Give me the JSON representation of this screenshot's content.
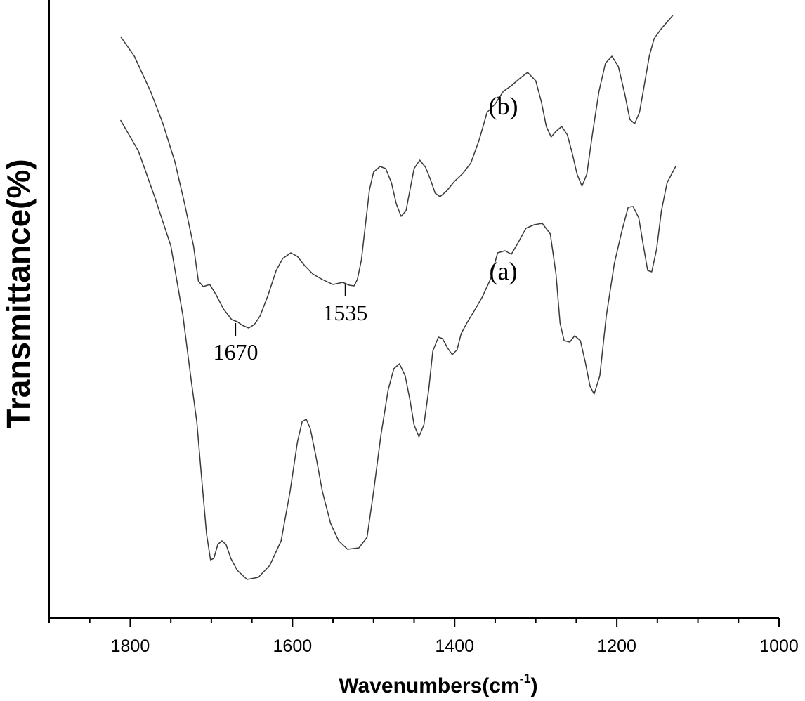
{
  "chart_data": {
    "type": "line",
    "xlabel": "Wavenumbers(cm",
    "xlabel_sup": "-1",
    "xlabel_close": ")",
    "ylabel": "Transmittance(%)",
    "xlim": [
      1900,
      1000
    ],
    "x_reversed": true,
    "y_ticks_shown": false,
    "grid": false,
    "x_ticks": [
      1800,
      1600,
      1400,
      1200,
      1000
    ],
    "x_tick_labels": [
      "1800",
      "1600",
      "1400",
      "1200",
      "1000"
    ],
    "series": [
      {
        "label": "(a)",
        "points": [
          [
            1812,
            171
          ],
          [
            1790,
            215
          ],
          [
            1770,
            280
          ],
          [
            1750,
            350
          ],
          [
            1735,
            450
          ],
          [
            1725,
            540
          ],
          [
            1718,
            600
          ],
          [
            1712,
            680
          ],
          [
            1706,
            760
          ],
          [
            1701,
            797
          ],
          [
            1697,
            795
          ],
          [
            1692,
            775
          ],
          [
            1687,
            770
          ],
          [
            1682,
            775
          ],
          [
            1676,
            795
          ],
          [
            1668,
            812
          ],
          [
            1656,
            825
          ],
          [
            1642,
            822
          ],
          [
            1628,
            805
          ],
          [
            1614,
            770
          ],
          [
            1603,
            700
          ],
          [
            1594,
            630
          ],
          [
            1588,
            600
          ],
          [
            1583,
            597
          ],
          [
            1578,
            610
          ],
          [
            1571,
            650
          ],
          [
            1563,
            700
          ],
          [
            1553,
            745
          ],
          [
            1543,
            770
          ],
          [
            1532,
            782
          ],
          [
            1518,
            780
          ],
          [
            1508,
            765
          ],
          [
            1500,
            700
          ],
          [
            1491,
            620
          ],
          [
            1482,
            555
          ],
          [
            1475,
            525
          ],
          [
            1468,
            518
          ],
          [
            1461,
            535
          ],
          [
            1455,
            570
          ],
          [
            1450,
            605
          ],
          [
            1444,
            622
          ],
          [
            1438,
            605
          ],
          [
            1432,
            555
          ],
          [
            1427,
            500
          ],
          [
            1420,
            480
          ],
          [
            1415,
            482
          ],
          [
            1409,
            495
          ],
          [
            1403,
            505
          ],
          [
            1397,
            498
          ],
          [
            1392,
            475
          ],
          [
            1385,
            460
          ],
          [
            1376,
            443
          ],
          [
            1366,
            423
          ],
          [
            1356,
            398
          ],
          [
            1347,
            360
          ],
          [
            1338,
            357
          ],
          [
            1330,
            362
          ],
          [
            1322,
            346
          ],
          [
            1312,
            325
          ],
          [
            1302,
            320
          ],
          [
            1292,
            318
          ],
          [
            1282,
            333
          ],
          [
            1275,
            390
          ],
          [
            1270,
            460
          ],
          [
            1265,
            485
          ],
          [
            1258,
            487
          ],
          [
            1252,
            478
          ],
          [
            1245,
            485
          ],
          [
            1239,
            515
          ],
          [
            1233,
            550
          ],
          [
            1228,
            561
          ],
          [
            1221,
            535
          ],
          [
            1213,
            450
          ],
          [
            1203,
            375
          ],
          [
            1194,
            330
          ],
          [
            1186,
            295
          ],
          [
            1180,
            294
          ],
          [
            1173,
            310
          ],
          [
            1168,
            345
          ],
          [
            1162,
            385
          ],
          [
            1157,
            387
          ],
          [
            1151,
            355
          ],
          [
            1145,
            300
          ],
          [
            1138,
            260
          ],
          [
            1127,
            236
          ]
        ]
      },
      {
        "label": "(b)",
        "points": [
          [
            1812,
            52
          ],
          [
            1795,
            80
          ],
          [
            1775,
            130
          ],
          [
            1760,
            175
          ],
          [
            1745,
            230
          ],
          [
            1733,
            290
          ],
          [
            1722,
            350
          ],
          [
            1716,
            400
          ],
          [
            1710,
            408
          ],
          [
            1702,
            405
          ],
          [
            1694,
            420
          ],
          [
            1685,
            440
          ],
          [
            1675,
            455
          ],
          [
            1668,
            458
          ],
          [
            1662,
            463
          ],
          [
            1654,
            467
          ],
          [
            1647,
            462
          ],
          [
            1640,
            450
          ],
          [
            1630,
            420
          ],
          [
            1620,
            385
          ],
          [
            1612,
            368
          ],
          [
            1602,
            360
          ],
          [
            1594,
            365
          ],
          [
            1585,
            378
          ],
          [
            1575,
            390
          ],
          [
            1563,
            398
          ],
          [
            1550,
            405
          ],
          [
            1538,
            402
          ],
          [
            1530,
            406
          ],
          [
            1524,
            407
          ],
          [
            1520,
            398
          ],
          [
            1515,
            370
          ],
          [
            1510,
            320
          ],
          [
            1505,
            270
          ],
          [
            1500,
            245
          ],
          [
            1492,
            237
          ],
          [
            1485,
            240
          ],
          [
            1478,
            260
          ],
          [
            1472,
            290
          ],
          [
            1466,
            308
          ],
          [
            1460,
            300
          ],
          [
            1455,
            270
          ],
          [
            1450,
            240
          ],
          [
            1443,
            228
          ],
          [
            1436,
            238
          ],
          [
            1430,
            255
          ],
          [
            1424,
            275
          ],
          [
            1418,
            280
          ],
          [
            1410,
            272
          ],
          [
            1400,
            258
          ],
          [
            1390,
            247
          ],
          [
            1380,
            232
          ],
          [
            1370,
            200
          ],
          [
            1360,
            160
          ],
          [
            1350,
            148
          ],
          [
            1340,
            130
          ],
          [
            1330,
            122
          ],
          [
            1320,
            112
          ],
          [
            1310,
            103
          ],
          [
            1300,
            115
          ],
          [
            1293,
            145
          ],
          [
            1287,
            180
          ],
          [
            1281,
            195
          ],
          [
            1275,
            187
          ],
          [
            1268,
            180
          ],
          [
            1261,
            192
          ],
          [
            1255,
            218
          ],
          [
            1249,
            248
          ],
          [
            1243,
            265
          ],
          [
            1237,
            248
          ],
          [
            1230,
            190
          ],
          [
            1222,
            130
          ],
          [
            1214,
            90
          ],
          [
            1206,
            80
          ],
          [
            1198,
            95
          ],
          [
            1190,
            135
          ],
          [
            1184,
            170
          ],
          [
            1178,
            176
          ],
          [
            1172,
            160
          ],
          [
            1166,
            120
          ],
          [
            1160,
            80
          ],
          [
            1154,
            55
          ],
          [
            1146,
            42
          ],
          [
            1137,
            30
          ],
          [
            1131,
            22
          ]
        ]
      }
    ],
    "annotations": [
      {
        "text": "(a)",
        "x": 1340,
        "y": 398
      },
      {
        "text": "(b)",
        "x": 1340,
        "y": 163
      },
      {
        "text": "1670",
        "x": 1670,
        "y": 458,
        "series": "(b)"
      },
      {
        "text": "1535",
        "x": 1535,
        "y": 402,
        "series": "(b)"
      }
    ]
  }
}
